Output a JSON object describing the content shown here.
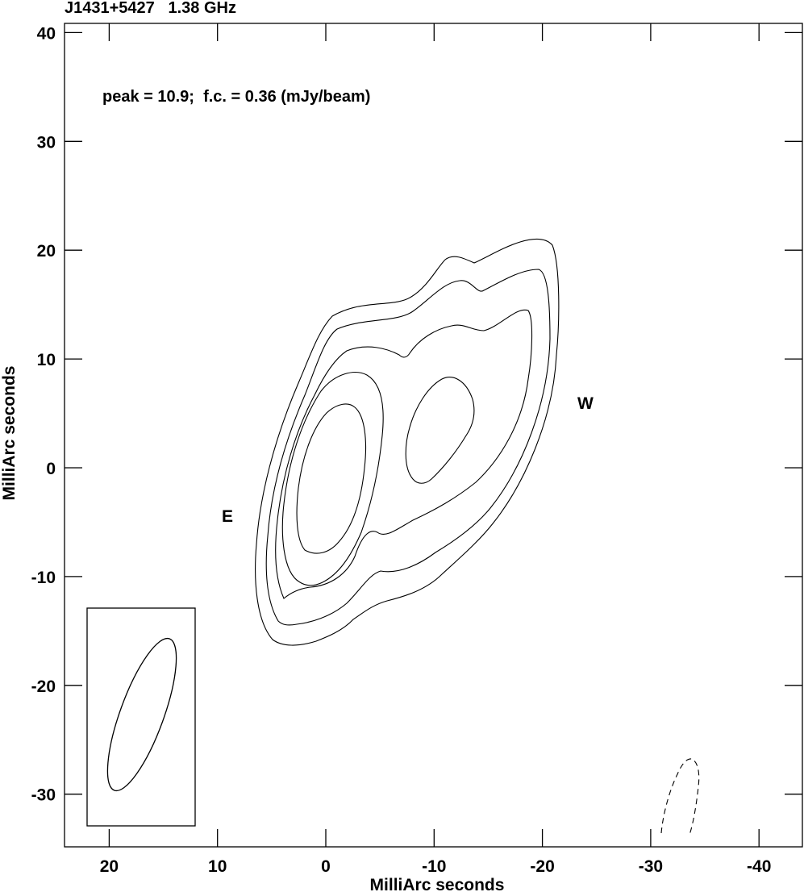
{
  "title": "J1431+5427   1.38 GHz",
  "annotation": "peak = 10.9;  f.c. = 0.36 (mJy/beam)",
  "xlabel": "MilliArc seconds",
  "ylabel": "MilliArc seconds",
  "component_labels": {
    "east": "E",
    "west": "W"
  },
  "axes": {
    "xlim": [
      24,
      -44
    ],
    "ylim": [
      -35,
      41
    ],
    "x_ticks": [
      20,
      10,
      0,
      -10,
      -20,
      -30,
      -40
    ],
    "x_tick_labels": [
      "20",
      "10",
      "0",
      "-10",
      "-20",
      "-30",
      "-40"
    ],
    "y_ticks": [
      40,
      30,
      20,
      10,
      0,
      -10,
      -20,
      -30
    ],
    "y_tick_labels": [
      "40",
      "30",
      "20",
      "10",
      "0",
      "-10",
      "-20",
      "-30"
    ]
  },
  "chart_data": {
    "type": "contour",
    "title": "J1431+5427   1.38 GHz",
    "xlabel": "MilliArc seconds",
    "ylabel": "MilliArc seconds",
    "peak_mJy_per_beam": 10.9,
    "first_contour_mJy_per_beam": 0.36,
    "x_direction": "decreasing to the right",
    "components": [
      {
        "name": "E",
        "approx_center_mas": [
          -1,
          -2
        ]
      },
      {
        "name": "W",
        "approx_center_mas": [
          -11,
          2
        ]
      }
    ],
    "contour_levels_drawn": 5,
    "negative_contour": "dashed, near (-33, -31)",
    "restoring_beam": "ellipse in lower-left box, elongated along position angle ~20 deg",
    "grid": false,
    "legend": "none"
  }
}
